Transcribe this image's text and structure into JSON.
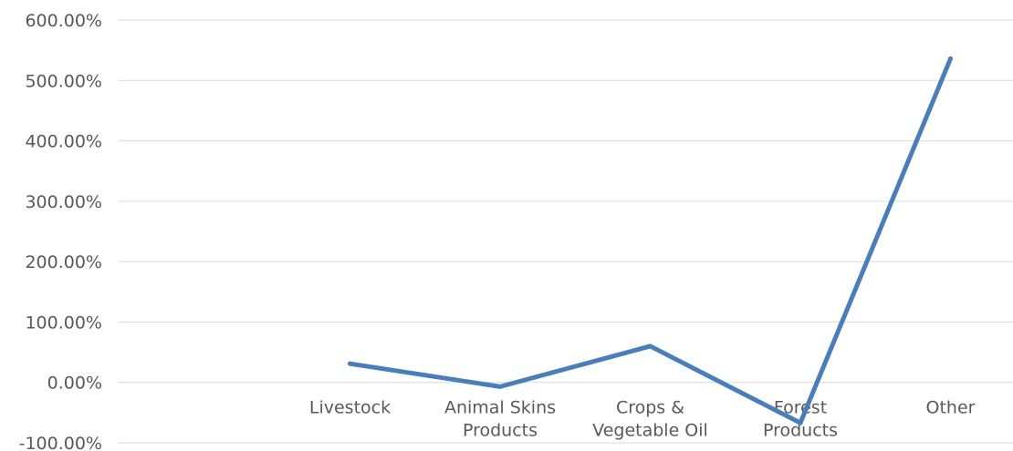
{
  "chart_data": {
    "type": "line",
    "title": "",
    "xlabel": "",
    "ylabel": "",
    "categories": [
      "",
      "Livestock",
      "Animal Skins Products",
      "Crops & Vegetable Oil",
      "Forest Products",
      "Other"
    ],
    "category_lines": [
      [
        ""
      ],
      [
        "Livestock"
      ],
      [
        "Animal Skins",
        "Products"
      ],
      [
        "Crops &",
        "Vegetable Oil"
      ],
      [
        "Forest",
        "Products"
      ],
      [
        "Other"
      ]
    ],
    "series": [
      {
        "color": "#4a7ebb",
        "values": [
          null,
          31,
          -7,
          60,
          -67,
          536
        ]
      }
    ],
    "ylim": [
      -100,
      600
    ],
    "yticks": [
      -100,
      0,
      100,
      200,
      300,
      400,
      500,
      600
    ],
    "ytick_labels": [
      "-100.00%",
      "0.00%",
      "100.00%",
      "200.00%",
      "300.00%",
      "400.00%",
      "500.00%",
      "600.00%"
    ],
    "grid": true,
    "legend": "none"
  }
}
